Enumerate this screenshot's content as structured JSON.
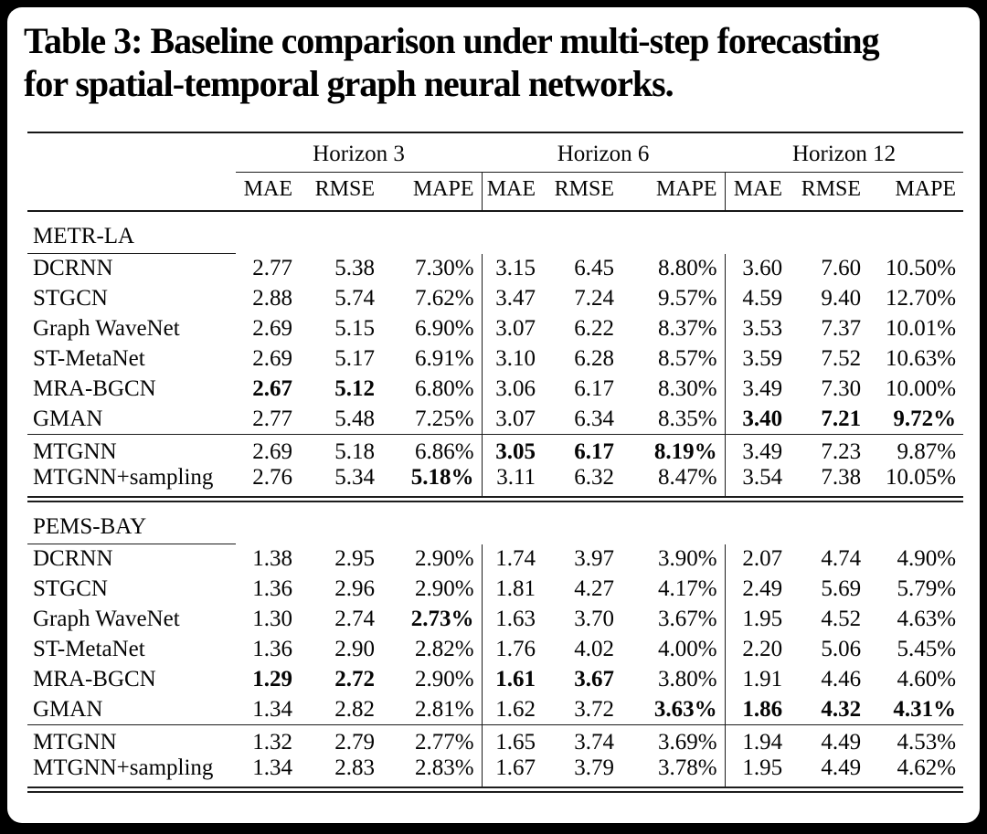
{
  "title": {
    "line1": "Table 3: Baseline comparison under multi-step forecasting",
    "line2": "for spatial-temporal graph neural networks."
  },
  "table": {
    "column_groups": [
      "Horizon 3",
      "Horizon 6",
      "Horizon 12"
    ],
    "metric_headers": [
      "MAE",
      "RMSE",
      "MAPE"
    ],
    "sections": [
      {
        "label": "METR-LA",
        "baseline_rows": [
          {
            "model": "DCRNN",
            "values": [
              "2.77",
              "5.38",
              "7.30%",
              "3.15",
              "6.45",
              "8.80%",
              "3.60",
              "7.60",
              "10.50%"
            ],
            "bold": []
          },
          {
            "model": "STGCN",
            "values": [
              "2.88",
              "5.74",
              "7.62%",
              "3.47",
              "7.24",
              "9.57%",
              "4.59",
              "9.40",
              "12.70%"
            ],
            "bold": []
          },
          {
            "model": "Graph WaveNet",
            "values": [
              "2.69",
              "5.15",
              "6.90%",
              "3.07",
              "6.22",
              "8.37%",
              "3.53",
              "7.37",
              "10.01%"
            ],
            "bold": []
          },
          {
            "model": "ST-MetaNet",
            "values": [
              "2.69",
              "5.17",
              "6.91%",
              "3.10",
              "6.28",
              "8.57%",
              "3.59",
              "7.52",
              "10.63%"
            ],
            "bold": []
          },
          {
            "model": "MRA-BGCN",
            "values": [
              "2.67",
              "5.12",
              "6.80%",
              "3.06",
              "6.17",
              "8.30%",
              "3.49",
              "7.30",
              "10.00%"
            ],
            "bold": [
              0,
              1
            ]
          },
          {
            "model": "GMAN",
            "values": [
              "2.77",
              "5.48",
              "7.25%",
              "3.07",
              "6.34",
              "8.35%",
              "3.40",
              "7.21",
              "9.72%"
            ],
            "bold": [
              6,
              7,
              8
            ]
          }
        ],
        "mtgnn_rows": [
          {
            "model": "MTGNN",
            "values": [
              "2.69",
              "5.18",
              "6.86%",
              "3.05",
              "6.17",
              "8.19%",
              "3.49",
              "7.23",
              "9.87%"
            ],
            "bold": [
              3,
              4,
              5
            ]
          },
          {
            "model": "MTGNN+sampling",
            "values": [
              "2.76",
              "5.34",
              "5.18%",
              "3.11",
              "6.32",
              "8.47%",
              "3.54",
              "7.38",
              "10.05%"
            ],
            "bold": [
              2
            ]
          }
        ]
      },
      {
        "label": "PEMS-BAY",
        "baseline_rows": [
          {
            "model": "DCRNN",
            "values": [
              "1.38",
              "2.95",
              "2.90%",
              "1.74",
              "3.97",
              "3.90%",
              "2.07",
              "4.74",
              "4.90%"
            ],
            "bold": []
          },
          {
            "model": "STGCN",
            "values": [
              "1.36",
              "2.96",
              "2.90%",
              "1.81",
              "4.27",
              "4.17%",
              "2.49",
              "5.69",
              "5.79%"
            ],
            "bold": []
          },
          {
            "model": "Graph WaveNet",
            "values": [
              "1.30",
              "2.74",
              "2.73%",
              "1.63",
              "3.70",
              "3.67%",
              "1.95",
              "4.52",
              "4.63%"
            ],
            "bold": [
              2
            ]
          },
          {
            "model": "ST-MetaNet",
            "values": [
              "1.36",
              "2.90",
              "2.82%",
              "1.76",
              "4.02",
              "4.00%",
              "2.20",
              "5.06",
              "5.45%"
            ],
            "bold": []
          },
          {
            "model": "MRA-BGCN",
            "values": [
              "1.29",
              "2.72",
              "2.90%",
              "1.61",
              "3.67",
              "3.80%",
              "1.91",
              "4.46",
              "4.60%"
            ],
            "bold": [
              0,
              1,
              3,
              4
            ]
          },
          {
            "model": "GMAN",
            "values": [
              "1.34",
              "2.82",
              "2.81%",
              "1.62",
              "3.72",
              "3.63%",
              "1.86",
              "4.32",
              "4.31%"
            ],
            "bold": [
              5,
              6,
              7,
              8
            ]
          }
        ],
        "mtgnn_rows": [
          {
            "model": "MTGNN",
            "values": [
              "1.32",
              "2.79",
              "2.77%",
              "1.65",
              "3.74",
              "3.69%",
              "1.94",
              "4.49",
              "4.53%"
            ],
            "bold": []
          },
          {
            "model": "MTGNN+sampling",
            "values": [
              "1.34",
              "2.83",
              "2.83%",
              "1.67",
              "3.79",
              "3.78%",
              "1.95",
              "4.49",
              "4.62%"
            ],
            "bold": []
          }
        ]
      }
    ]
  }
}
